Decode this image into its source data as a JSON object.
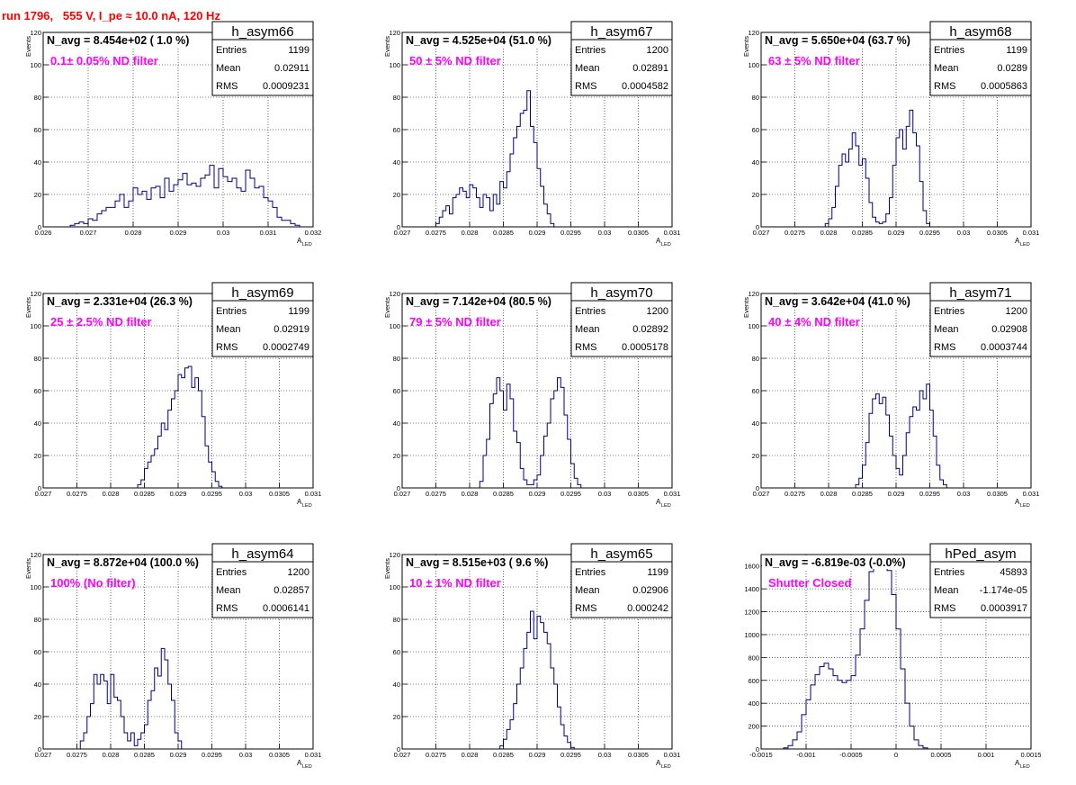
{
  "run_title": "run 1796,   555 V, I_pe ≈ 10.0 nA, 120 Hz",
  "colors": {
    "title": "#ff0000",
    "annotation": "#ff00ff",
    "histogram": "#000080",
    "grid": "#000000"
  },
  "chart_data": [
    {
      "type": "histogram",
      "name": "h_asym66",
      "n_avg": "N_avg = 8.454e+02 ( 1.0 %)",
      "annotation": "0.1± 0.05% ND filter",
      "stats": {
        "entries": "1199",
        "mean": "0.02911",
        "rms": "0.0009231"
      },
      "xlabel": "A",
      "xlabel_sub": "LED",
      "ylabel": "Events",
      "xlim": [
        0.026,
        0.032
      ],
      "ylim": [
        0,
        120
      ],
      "grid": true,
      "xticks": [
        0.026,
        0.027,
        0.028,
        0.029,
        0.03,
        0.031,
        0.032
      ],
      "xtick_labels": [
        "0.026",
        "0.027",
        "0.028",
        "0.029",
        "0.03",
        "0.031",
        "0.032"
      ],
      "yticks": [
        0,
        20,
        40,
        60,
        80,
        100,
        120
      ],
      "ytick_labels": [
        "0",
        "20",
        "40",
        "60",
        "80",
        "100",
        "120"
      ],
      "bin_start": 0.0266,
      "bin_width": 0.0001,
      "counts": [
        1,
        2,
        3,
        2,
        5,
        4,
        8,
        10,
        12,
        12,
        16,
        20,
        12,
        16,
        24,
        20,
        22,
        17,
        24,
        25,
        18,
        30,
        22,
        26,
        29,
        33,
        26,
        27,
        25,
        30,
        32,
        38,
        24,
        36,
        31,
        28,
        30,
        24,
        22,
        35,
        30,
        24,
        25,
        18,
        16,
        12,
        6,
        4,
        4,
        2,
        1
      ]
    },
    {
      "type": "histogram",
      "name": "h_asym67",
      "n_avg": "N_avg = 4.525e+04 (51.0 %)",
      "annotation": "50 ± 5% ND filter",
      "stats": {
        "entries": "1200",
        "mean": "0.02891",
        "rms": "0.0004582"
      },
      "xlabel": "A",
      "xlabel_sub": "LED",
      "ylabel": "Events",
      "xlim": [
        0.027,
        0.031
      ],
      "ylim": [
        0,
        120
      ],
      "grid": true,
      "xticks": [
        0.027,
        0.0275,
        0.028,
        0.0285,
        0.029,
        0.0295,
        0.03,
        0.0305,
        0.031
      ],
      "xtick_labels": [
        "0.027",
        "0.0275",
        "0.028",
        "0.0285",
        "0.029",
        "0.0295",
        "0.03",
        "0.0305",
        "0.031"
      ],
      "yticks": [
        0,
        20,
        40,
        60,
        80,
        100,
        120
      ],
      "ytick_labels": [
        "0",
        "20",
        "40",
        "60",
        "80",
        "100",
        "120"
      ],
      "bin_start": 0.0275,
      "bin_width": 5e-05,
      "counts": [
        2,
        6,
        10,
        13,
        8,
        18,
        20,
        24,
        22,
        18,
        26,
        24,
        18,
        12,
        20,
        18,
        10,
        20,
        14,
        28,
        24,
        34,
        45,
        55,
        62,
        70,
        72,
        84,
        62,
        52,
        36,
        25,
        14,
        8,
        2
      ]
    },
    {
      "type": "histogram",
      "name": "h_asym68",
      "n_avg": "N_avg = 5.650e+04 (63.7 %)",
      "annotation": "63 ± 5% ND filter",
      "stats": {
        "entries": "1199",
        "mean": "0.0289",
        "rms": "0.0005863"
      },
      "xlabel": "A",
      "xlabel_sub": "LED",
      "ylabel": "Events",
      "xlim": [
        0.027,
        0.031
      ],
      "ylim": [
        0,
        120
      ],
      "grid": true,
      "xticks": [
        0.027,
        0.0275,
        0.028,
        0.0285,
        0.029,
        0.0295,
        0.03,
        0.0305,
        0.031
      ],
      "xtick_labels": [
        "0.027",
        "0.0275",
        "0.028",
        "0.0285",
        "0.029",
        "0.0295",
        "0.03",
        "0.0305",
        "0.031"
      ],
      "yticks": [
        0,
        20,
        40,
        60,
        80,
        100,
        120
      ],
      "ytick_labels": [
        "0",
        "20",
        "40",
        "60",
        "80",
        "100",
        "120"
      ],
      "bin_start": 0.02795,
      "bin_width": 5e-05,
      "counts": [
        2,
        5,
        12,
        25,
        38,
        45,
        40,
        48,
        58,
        50,
        38,
        42,
        30,
        15,
        6,
        3,
        2,
        3,
        8,
        18,
        38,
        55,
        60,
        48,
        62,
        72,
        58,
        50,
        28,
        10,
        2
      ]
    },
    {
      "type": "histogram",
      "name": "h_asym69",
      "n_avg": "N_avg = 2.331e+04 (26.3 %)",
      "annotation": "25 ± 2.5% ND filter",
      "stats": {
        "entries": "1199",
        "mean": "0.02919",
        "rms": "0.0002749"
      },
      "xlabel": "A",
      "xlabel_sub": "LED",
      "ylabel": "Events",
      "xlim": [
        0.027,
        0.031
      ],
      "ylim": [
        0,
        120
      ],
      "grid": true,
      "xticks": [
        0.027,
        0.0275,
        0.028,
        0.0285,
        0.029,
        0.0295,
        0.03,
        0.0305,
        0.031
      ],
      "xtick_labels": [
        "0.027",
        "0.0275",
        "0.028",
        "0.0285",
        "0.029",
        "0.0295",
        "0.03",
        "0.0305",
        "0.031"
      ],
      "yticks": [
        0,
        20,
        40,
        60,
        80,
        100,
        120
      ],
      "ytick_labels": [
        "0",
        "20",
        "40",
        "60",
        "80",
        "100",
        "120"
      ],
      "bin_start": 0.0284,
      "bin_width": 5e-05,
      "counts": [
        2,
        5,
        12,
        16,
        20,
        24,
        32,
        40,
        36,
        48,
        55,
        60,
        70,
        68,
        74,
        75,
        62,
        68,
        60,
        44,
        26,
        16,
        10,
        4,
        1
      ]
    },
    {
      "type": "histogram",
      "name": "h_asym70",
      "n_avg": "N_avg = 7.142e+04 (80.5 %)",
      "annotation": "79 ± 5% ND filter",
      "stats": {
        "entries": "1200",
        "mean": "0.02892",
        "rms": "0.0005178"
      },
      "xlabel": "A",
      "xlabel_sub": "LED",
      "ylabel": "Events",
      "xlim": [
        0.027,
        0.031
      ],
      "ylim": [
        0,
        120
      ],
      "grid": true,
      "xticks": [
        0.027,
        0.0275,
        0.028,
        0.0285,
        0.029,
        0.0295,
        0.03,
        0.0305,
        0.031
      ],
      "xtick_labels": [
        "0.027",
        "0.0275",
        "0.028",
        "0.0285",
        "0.029",
        "0.0295",
        "0.03",
        "0.0305",
        "0.031"
      ],
      "yticks": [
        0,
        20,
        40,
        60,
        80,
        100,
        120
      ],
      "ytick_labels": [
        "0",
        "20",
        "40",
        "60",
        "80",
        "100",
        "120"
      ],
      "bin_start": 0.02815,
      "bin_width": 5e-05,
      "counts": [
        4,
        20,
        30,
        52,
        58,
        68,
        60,
        48,
        64,
        55,
        35,
        28,
        12,
        5,
        2,
        2,
        5,
        8,
        20,
        32,
        40,
        55,
        60,
        68,
        62,
        45,
        30,
        15,
        6,
        2
      ]
    },
    {
      "type": "histogram",
      "name": "h_asym71",
      "n_avg": "N_avg = 3.642e+04 (41.0 %)",
      "annotation": "40 ± 4% ND filter",
      "stats": {
        "entries": "1200",
        "mean": "0.02908",
        "rms": "0.0003744"
      },
      "xlabel": "A",
      "xlabel_sub": "LED",
      "ylabel": "Events",
      "xlim": [
        0.027,
        0.031
      ],
      "ylim": [
        0,
        120
      ],
      "grid": true,
      "xticks": [
        0.027,
        0.0275,
        0.028,
        0.0285,
        0.029,
        0.0295,
        0.03,
        0.0305,
        0.031
      ],
      "xtick_labels": [
        "0.027",
        "0.0275",
        "0.028",
        "0.0285",
        "0.029",
        "0.0295",
        "0.03",
        "0.0305",
        "0.031"
      ],
      "yticks": [
        0,
        20,
        40,
        60,
        80,
        100,
        120
      ],
      "ytick_labels": [
        "0",
        "20",
        "40",
        "60",
        "80",
        "100",
        "120"
      ],
      "bin_start": 0.0284,
      "bin_width": 5e-05,
      "counts": [
        2,
        6,
        14,
        28,
        46,
        55,
        58,
        52,
        56,
        45,
        32,
        20,
        12,
        8,
        20,
        34,
        44,
        50,
        48,
        60,
        55,
        64,
        48,
        32,
        14,
        5,
        2
      ]
    },
    {
      "type": "histogram",
      "name": "h_asym64",
      "n_avg": "N_avg = 8.872e+04 (100.0 %)",
      "annotation": "100% (No filter)",
      "stats": {
        "entries": "1200",
        "mean": "0.02857",
        "rms": "0.0006141"
      },
      "xlabel": "A",
      "xlabel_sub": "LED",
      "ylabel": "Events",
      "xlim": [
        0.027,
        0.031
      ],
      "ylim": [
        0,
        120
      ],
      "grid": true,
      "xticks": [
        0.027,
        0.0275,
        0.028,
        0.0285,
        0.029,
        0.0295,
        0.03,
        0.0305,
        0.031
      ],
      "xtick_labels": [
        "0.027",
        "0.0275",
        "0.028",
        "0.0285",
        "0.029",
        "0.0295",
        "0.03",
        "0.0305",
        "0.031"
      ],
      "yticks": [
        0,
        20,
        40,
        60,
        80,
        100,
        120
      ],
      "ytick_labels": [
        "0",
        "20",
        "40",
        "60",
        "80",
        "100",
        "120"
      ],
      "bin_start": 0.02755,
      "bin_width": 5e-05,
      "counts": [
        5,
        10,
        20,
        28,
        46,
        40,
        46,
        42,
        28,
        46,
        32,
        30,
        20,
        10,
        5,
        10,
        2,
        6,
        10,
        15,
        30,
        36,
        50,
        45,
        62,
        55,
        40,
        30,
        10,
        5
      ]
    },
    {
      "type": "histogram",
      "name": "h_asym65",
      "n_avg": "N_avg = 8.515e+03 ( 9.6 %)",
      "annotation": "10 ± 1% ND filter",
      "stats": {
        "entries": "1199",
        "mean": "0.02906",
        "rms": "0.000242"
      },
      "xlabel": "A",
      "xlabel_sub": "LED",
      "ylabel": "Events",
      "xlim": [
        0.027,
        0.031
      ],
      "ylim": [
        0,
        120
      ],
      "grid": true,
      "xticks": [
        0.027,
        0.0275,
        0.028,
        0.0285,
        0.029,
        0.0295,
        0.03,
        0.0305,
        0.031
      ],
      "xtick_labels": [
        "0.027",
        "0.0275",
        "0.028",
        "0.0285",
        "0.029",
        "0.0295",
        "0.03",
        "0.0305",
        "0.031"
      ],
      "yticks": [
        0,
        20,
        40,
        60,
        80,
        100,
        120
      ],
      "ytick_labels": [
        "0",
        "20",
        "40",
        "60",
        "80",
        "100",
        "120"
      ],
      "bin_start": 0.02845,
      "bin_width": 5e-05,
      "counts": [
        2,
        6,
        12,
        18,
        28,
        40,
        50,
        62,
        72,
        85,
        68,
        82,
        78,
        72,
        65,
        50,
        40,
        26,
        15,
        8,
        4,
        1
      ]
    },
    {
      "type": "histogram",
      "name": "hPed_asym",
      "n_avg": "N_avg = -6.819e-03 (-0.0%)",
      "annotation": "Shutter Closed",
      "stats": {
        "entries": "45893",
        "mean": "-1.174e-05",
        "rms": "0.0003917"
      },
      "xlabel": "A",
      "xlabel_sub": "LED",
      "ylabel": "",
      "xlim": [
        -0.0015,
        0.0015
      ],
      "ylim": [
        0,
        1700
      ],
      "grid": true,
      "xticks": [
        -0.0015,
        -0.001,
        -0.0005,
        0,
        0.0005,
        0.001,
        0.0015
      ],
      "xtick_labels": [
        "-0.0015",
        "-0.001",
        "-0.0005",
        "0",
        "0.0005",
        "0.001",
        "0.0015"
      ],
      "yticks": [
        0,
        200,
        400,
        600,
        800,
        1000,
        1200,
        1400,
        1600
      ],
      "ytick_labels": [
        "0",
        "200",
        "400",
        "600",
        "800",
        "1000",
        "1200",
        "1400",
        "1600"
      ],
      "bin_start": -0.00125,
      "bin_width": 5e-05,
      "counts": [
        10,
        30,
        80,
        150,
        300,
        430,
        560,
        650,
        720,
        750,
        700,
        640,
        600,
        580,
        600,
        640,
        820,
        1050,
        1300,
        1550,
        1630,
        1600,
        1620,
        1560,
        1350,
        1050,
        700,
        400,
        200,
        80,
        30,
        10
      ]
    }
  ]
}
